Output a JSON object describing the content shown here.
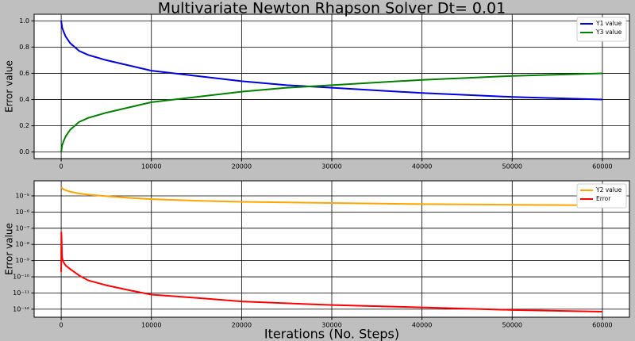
{
  "chart_data": [
    {
      "type": "line",
      "title": "Multivariate Newton Rhapson Solver Dt= 0.01",
      "y_label": "Error value",
      "x": [
        0,
        100,
        250,
        500,
        1000,
        2000,
        3000,
        5000,
        7500,
        10000,
        15000,
        20000,
        25000,
        30000,
        35000,
        40000,
        45000,
        50000,
        55000,
        60000
      ],
      "series": [
        {
          "name": "Y1 value",
          "color": "#0000dd",
          "values": [
            1.0,
            0.95,
            0.92,
            0.88,
            0.83,
            0.77,
            0.74,
            0.7,
            0.66,
            0.62,
            0.58,
            0.54,
            0.51,
            0.49,
            0.47,
            0.45,
            0.435,
            0.42,
            0.41,
            0.4
          ]
        },
        {
          "name": "Y3 value",
          "color": "#008000",
          "values": [
            0.0,
            0.05,
            0.08,
            0.12,
            0.17,
            0.23,
            0.26,
            0.3,
            0.34,
            0.38,
            0.42,
            0.46,
            0.49,
            0.51,
            0.53,
            0.55,
            0.565,
            0.58,
            0.59,
            0.6
          ]
        }
      ],
      "xlim": [
        -3000,
        63000
      ],
      "xticks": [
        0,
        10000,
        20000,
        30000,
        40000,
        50000,
        60000
      ],
      "ylim": [
        -0.05,
        1.05
      ],
      "yticks": [
        {
          "value": 0,
          "label": "0.0"
        },
        0.2,
        0.4,
        0.6,
        0.8,
        {
          "value": 1,
          "label": "1.0"
        }
      ],
      "grid": true,
      "legend": "upper right"
    },
    {
      "type": "line",
      "y_label": "Error value",
      "x_label": "Iterations (No. Steps)",
      "x": [
        0,
        20,
        100,
        250,
        500,
        1000,
        2000,
        3000,
        5000,
        7500,
        10000,
        15000,
        20000,
        30000,
        40000,
        50000,
        60000
      ],
      "series": [
        {
          "name": "Y2 value",
          "color": "#ffa500",
          "values": [
            3.5e-05,
            3.4e-05,
            3e-05,
            2.6e-05,
            2.2e-05,
            1.8e-05,
            1.4e-05,
            1.2e-05,
            9.5e-06,
            7.5e-06,
            6.3e-06,
            5e-06,
            4.3e-06,
            3.6e-06,
            3.1e-06,
            2.8e-06,
            2.6e-06
          ]
        },
        {
          "name": "Error",
          "color": "#ff0000",
          "values": [
            2e-10,
            6e-08,
            1.5e-09,
            8e-10,
            5e-10,
            3e-10,
            1.2e-10,
            6e-11,
            3e-11,
            1.5e-11,
            8e-12,
            5e-12,
            3e-12,
            1.8e-12,
            1.3e-12,
            9e-13,
            7e-13
          ]
        }
      ],
      "xlim": [
        -3000,
        63000
      ],
      "xticks": [
        0,
        10000,
        20000,
        30000,
        40000,
        50000,
        60000
      ],
      "yscale": "log",
      "ylim": [
        3.2e-13,
        8.5e-05
      ],
      "yticks": [
        {
          "value": 1e-05,
          "label": "10⁻⁵"
        },
        {
          "value": 1e-06,
          "label": "10⁻⁶"
        },
        {
          "value": 1e-07,
          "label": "10⁻⁷"
        },
        {
          "value": 1e-08,
          "label": "10⁻⁸"
        },
        {
          "value": 1e-09,
          "label": "10⁻⁹"
        },
        {
          "value": 1e-10,
          "label": "10⁻¹⁰"
        },
        {
          "value": 1e-11,
          "label": "10⁻¹¹"
        },
        {
          "value": 1e-12,
          "label": "10⁻¹²"
        }
      ],
      "grid": true,
      "legend": "upper right"
    }
  ]
}
